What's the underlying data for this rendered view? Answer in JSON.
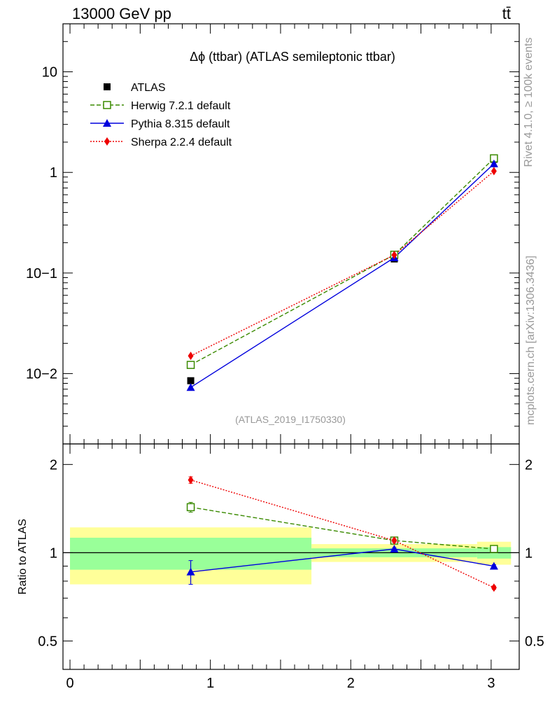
{
  "header": {
    "left": "13000 GeV pp",
    "right": "tt̄"
  },
  "side_labels": {
    "rivet": "Rivet 4.1.0, ≥ 100k events",
    "mcplots": "mcplots.cern.ch [arXiv:1306.3436]"
  },
  "chart_data": {
    "type": "line",
    "title": "Δϕ (ttbar) (ATLAS semileptonic ttbar)",
    "analysis_tag": "(ATLAS_2019_I1750330)",
    "xlabel": "",
    "ylabel": "",
    "xlim": [
      -0.05,
      3.2
    ],
    "ylim": [
      0.002,
      30
    ],
    "yscale": "log",
    "x_ticks": [
      "0",
      "1",
      "2",
      "3"
    ],
    "y_ticks": [
      "10",
      "1",
      "10−1",
      "10−2"
    ],
    "bin_edges": [
      0,
      1.72,
      2.9,
      3.1416
    ],
    "legend": {
      "position": "top-left",
      "entries": [
        "ATLAS",
        "Herwig 7.2.1 default",
        "Pythia 8.315 default",
        "Sherpa 2.2.4 default"
      ]
    },
    "series": [
      {
        "name": "ATLAS",
        "color": "#000000",
        "style": "data",
        "marker": "square",
        "x": [
          0.86,
          2.31,
          3.02
        ],
        "values": [
          0.0085,
          0.138,
          1.35
        ]
      },
      {
        "name": "Herwig 7.2.1 default",
        "color": "#3a8a00",
        "style": "dashed",
        "marker": "open-square",
        "x": [
          0.86,
          2.31,
          3.02
        ],
        "values": [
          0.0122,
          0.152,
          1.38
        ]
      },
      {
        "name": "Pythia 8.315 default",
        "color": "#0000dd",
        "style": "solid",
        "marker": "triangle",
        "x": [
          0.86,
          2.31,
          3.02
        ],
        "values": [
          0.0073,
          0.142,
          1.22
        ]
      },
      {
        "name": "Sherpa 2.2.4 default",
        "color": "#ee0000",
        "style": "dotted",
        "marker": "diamond",
        "x": [
          0.86,
          2.31,
          3.02
        ],
        "values": [
          0.015,
          0.151,
          1.03
        ]
      }
    ],
    "ratio": {
      "ylabel": "Ratio to ATLAS",
      "ylim": [
        0.4,
        2.35
      ],
      "y_ticks": [
        "2",
        "1",
        "0.5"
      ],
      "bands": {
        "green": [
          [
            0.875,
            1.125
          ],
          [
            0.965,
            1.035
          ],
          [
            0.955,
            1.045
          ]
        ],
        "yellow": [
          [
            0.78,
            1.22
          ],
          [
            0.93,
            1.07
          ],
          [
            0.91,
            1.09
          ]
        ],
        "green_color": "#99ff99",
        "yellow_color": "#ffff99"
      },
      "series": [
        {
          "name": "Herwig 7.2.1 default",
          "x": [
            0.86,
            2.31,
            3.02
          ],
          "values": [
            1.43,
            1.1,
            1.03
          ],
          "err": [
            0.055,
            0.015,
            0.01
          ]
        },
        {
          "name": "Pythia 8.315 default",
          "x": [
            0.86,
            2.31,
            3.02
          ],
          "values": [
            0.86,
            1.03,
            0.9
          ],
          "err": [
            0.08,
            0.01,
            0.01
          ]
        },
        {
          "name": "Sherpa 2.2.4 default",
          "x": [
            0.86,
            2.31,
            3.02
          ],
          "values": [
            1.77,
            1.1,
            0.76
          ],
          "err": [
            0.045,
            0.015,
            0.01
          ]
        }
      ]
    }
  }
}
